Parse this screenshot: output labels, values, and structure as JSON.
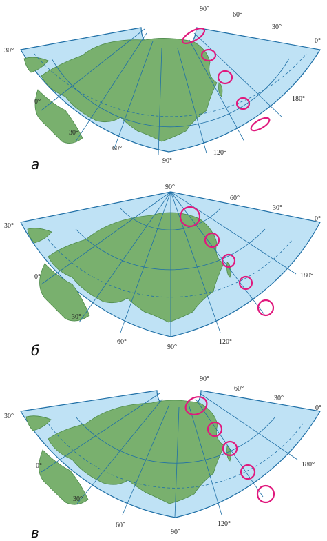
{
  "colors": {
    "ocean": "#bfe2f5",
    "land": "#79b06e",
    "grid": "#1f6fa6",
    "marker": "#e0197d",
    "coastline": "#4e8b4c"
  },
  "panels": [
    {
      "label": "а",
      "projection": "conic with cut-out pole",
      "longitude_labels": [
        "30°",
        "0°",
        "30°",
        "60°",
        "90°",
        "120°",
        "180°"
      ],
      "latitude_labels": [
        "90°",
        "60°",
        "30°",
        "0°"
      ],
      "marker_shape": "ellipses stretched along parallels toward the pole"
    },
    {
      "label": "б",
      "projection": "conic with pole as a point",
      "longitude_labels": [
        "30°",
        "0°",
        "30°",
        "60°",
        "90°",
        "120°",
        "180°"
      ],
      "latitude_labels": [
        "90°",
        "60°",
        "30°",
        "0°"
      ],
      "marker_shape": "circles growing toward the pole"
    },
    {
      "label": "в",
      "projection": "conic with cut-out pole",
      "longitude_labels": [
        "30°",
        "0°",
        "30°",
        "60°",
        "90°",
        "120°",
        "180°"
      ],
      "latitude_labels": [
        "90°",
        "60°",
        "30°",
        "0°"
      ],
      "marker_shape": "circles and ellipse near pole"
    }
  ]
}
